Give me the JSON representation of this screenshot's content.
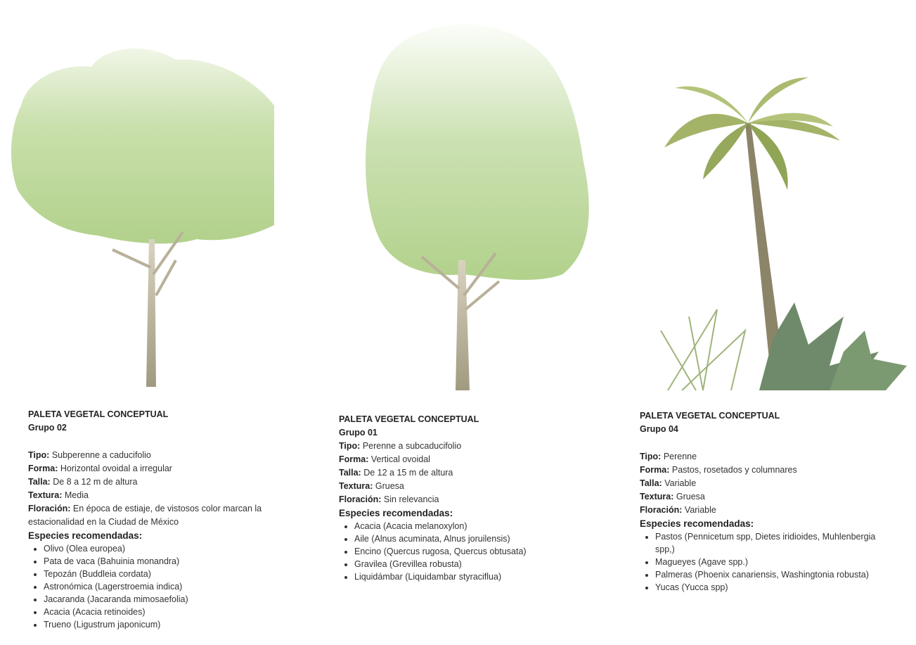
{
  "columns": [
    {
      "title": "PALETA VEGETAL CONCEPTUAL",
      "group": "Grupo 02",
      "properties": [
        {
          "label": "Tipo:",
          "value": "Subperenne a caducifolio"
        },
        {
          "label": "Forma:",
          "value": "Horizontal ovoidal a irregular"
        },
        {
          "label": "Talla:",
          "value": "De 8 a 12 m de altura"
        },
        {
          "label": "Textura:",
          "value": "Media"
        },
        {
          "label": "Floración:",
          "value": "En época de estiaje, de vistosos color marcan la estacionalidad en la Ciudad de México"
        }
      ],
      "species_heading": "Especies recomendadas:",
      "species": [
        "Olivo (Olea europea)",
        "Pata de vaca (Bahuinia monandra)",
        "Tepozán (Buddleia cordata)",
        "Astronómica (Lagerstroemia indica)",
        "Jacaranda (Jacaranda mimosaefolia)",
        "Acacia (Acacia retinoides)",
        "Trueno (Ligustrum japonicum)"
      ]
    },
    {
      "title": "PALETA VEGETAL CONCEPTUAL",
      "group": "Grupo 01",
      "properties": [
        {
          "label": "Tipo:",
          "value": "Perenne a subcaducifolio"
        },
        {
          "label": "Forma:",
          "value": "Vertical ovoidal"
        },
        {
          "label": "Talla:",
          "value": "De 12 a 15 m de altura"
        },
        {
          "label": "Textura:",
          "value": "Gruesa"
        },
        {
          "label": "Floración:",
          "value": "Sin relevancia"
        }
      ],
      "species_heading": "Especies recomendadas:",
      "species": [
        "Acacia (Acacia melanoxylon)",
        "Aile (Alnus acuminata, Alnus joruilensis)",
        "Encino (Quercus rugosa, Quercus obtusata)",
        "Gravilea (Grevillea robusta)",
        "Liquidámbar (Liquidambar styraciflua)"
      ]
    },
    {
      "title": "PALETA VEGETAL CONCEPTUAL",
      "group": "Grupo 04",
      "properties": [
        {
          "label": "Tipo:",
          "value": "Perenne"
        },
        {
          "label": "Forma:",
          "value": "Pastos, rosetados y columnares"
        },
        {
          "label": "Talla:",
          "value": "Variable"
        },
        {
          "label": "Textura:",
          "value": "Gruesa"
        },
        {
          "label": "Floración:",
          "value": "Variable"
        }
      ],
      "species_heading": "Especies recomendadas:",
      "species": [
        "Pastos (Pennicetum spp, Dietes iridioides, Muhlenbergia spp,)",
        "Magueyes (Agave spp.)",
        "Palmeras (Phoenix canariensis, Washingtonia robusta)",
        "Yucas (Yucca spp)"
      ]
    }
  ]
}
